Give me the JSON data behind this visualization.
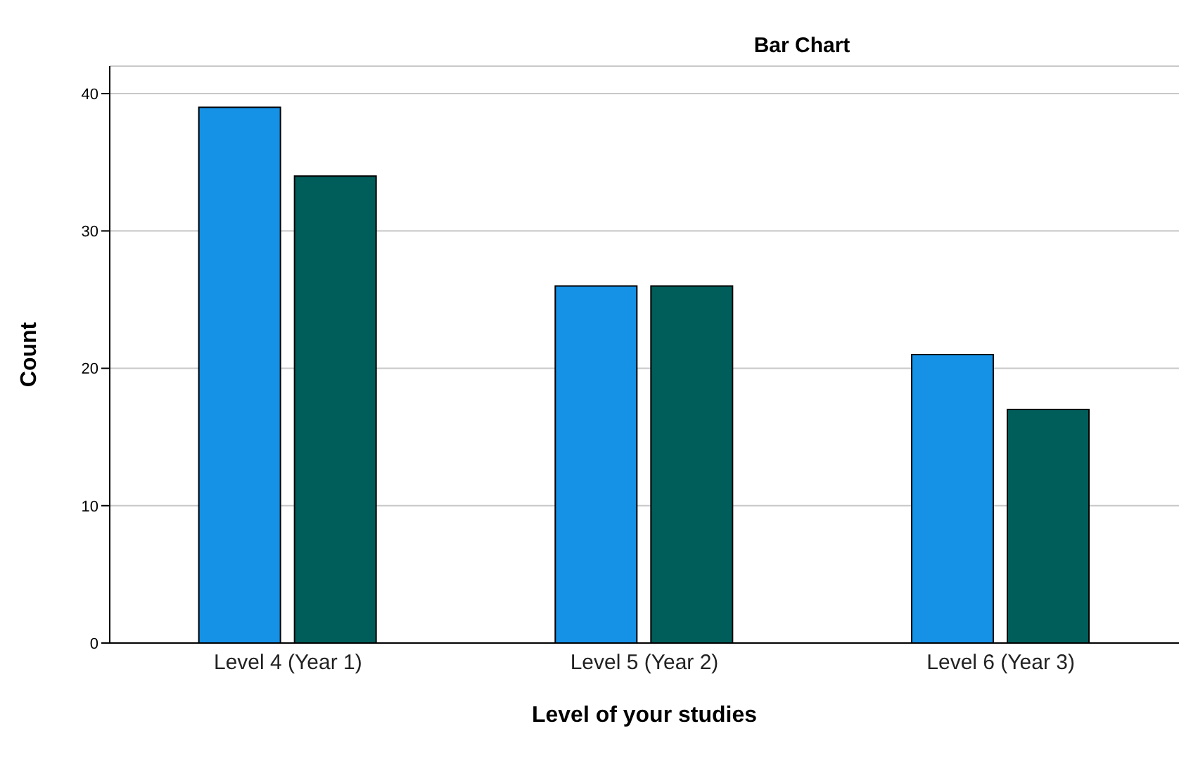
{
  "chart_data": {
    "type": "bar",
    "title": "Bar Chart",
    "xlabel": "Level of your studies",
    "ylabel": "Count",
    "categories": [
      "Level 4 (Year 1)",
      "Level 5 (Year 2)",
      "Level 6 (Year 3)"
    ],
    "series": [
      {
        "color": "#1591e6",
        "values": [
          39,
          26,
          21
        ]
      },
      {
        "color": "#005e5a",
        "values": [
          34,
          26,
          17
        ]
      }
    ],
    "ylim": [
      0,
      42
    ],
    "yticks": [
      0,
      10,
      20,
      30,
      40
    ],
    "grid": "y",
    "legend": false
  }
}
